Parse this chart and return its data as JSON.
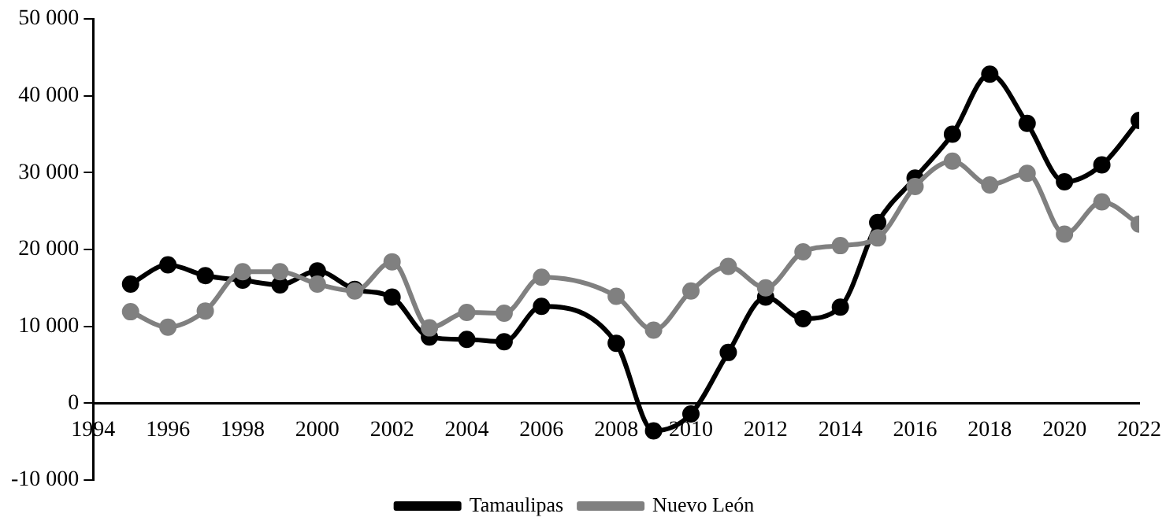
{
  "chart_data": {
    "type": "line",
    "x": [
      1995,
      1996,
      1997,
      1998,
      1999,
      2000,
      2001,
      2002,
      2003,
      2004,
      2005,
      2006,
      2007,
      2008,
      2009,
      2010,
      2011,
      2012,
      2013,
      2014,
      2015,
      2016,
      2017,
      2018,
      2019,
      2020,
      2021,
      2022
    ],
    "series": [
      {
        "name": "Tamaulipas",
        "color": "#000000",
        "values": [
          15500,
          18000,
          16600,
          16000,
          15400,
          17200,
          14800,
          13800,
          8600,
          8300,
          8000,
          12600,
          null,
          7800,
          -3600,
          -1400,
          6600,
          13800,
          11000,
          12500,
          23500,
          29300,
          35000,
          42800,
          36400,
          28800,
          31000,
          36800
        ]
      },
      {
        "name": "Nuevo León",
        "color": "#808080",
        "values": [
          11900,
          9900,
          12000,
          17100,
          17100,
          15500,
          14600,
          18400,
          9800,
          11800,
          11700,
          16400,
          null,
          13900,
          9500,
          14600,
          17800,
          15000,
          19700,
          20500,
          21500,
          28200,
          31500,
          28400,
          29900,
          22000,
          26200,
          23300
        ]
      }
    ],
    "xlim": [
      1994,
      2022
    ],
    "xticks": [
      1994,
      1996,
      1998,
      2000,
      2002,
      2004,
      2006,
      2008,
      2010,
      2012,
      2014,
      2016,
      2018,
      2020,
      2022
    ],
    "ylim": [
      -10000,
      50000
    ],
    "yticks": [
      {
        "value": -10000,
        "label": "-10 000"
      },
      0,
      {
        "value": 10000,
        "label": "10 000"
      },
      {
        "value": 20000,
        "label": "20 000"
      },
      {
        "value": 30000,
        "label": "30 000"
      },
      {
        "value": 40000,
        "label": "40 000"
      },
      {
        "value": 50000,
        "label": "50 000"
      }
    ],
    "grid": false,
    "legend": "bottom",
    "marker": "circle",
    "line_style": "solid"
  }
}
